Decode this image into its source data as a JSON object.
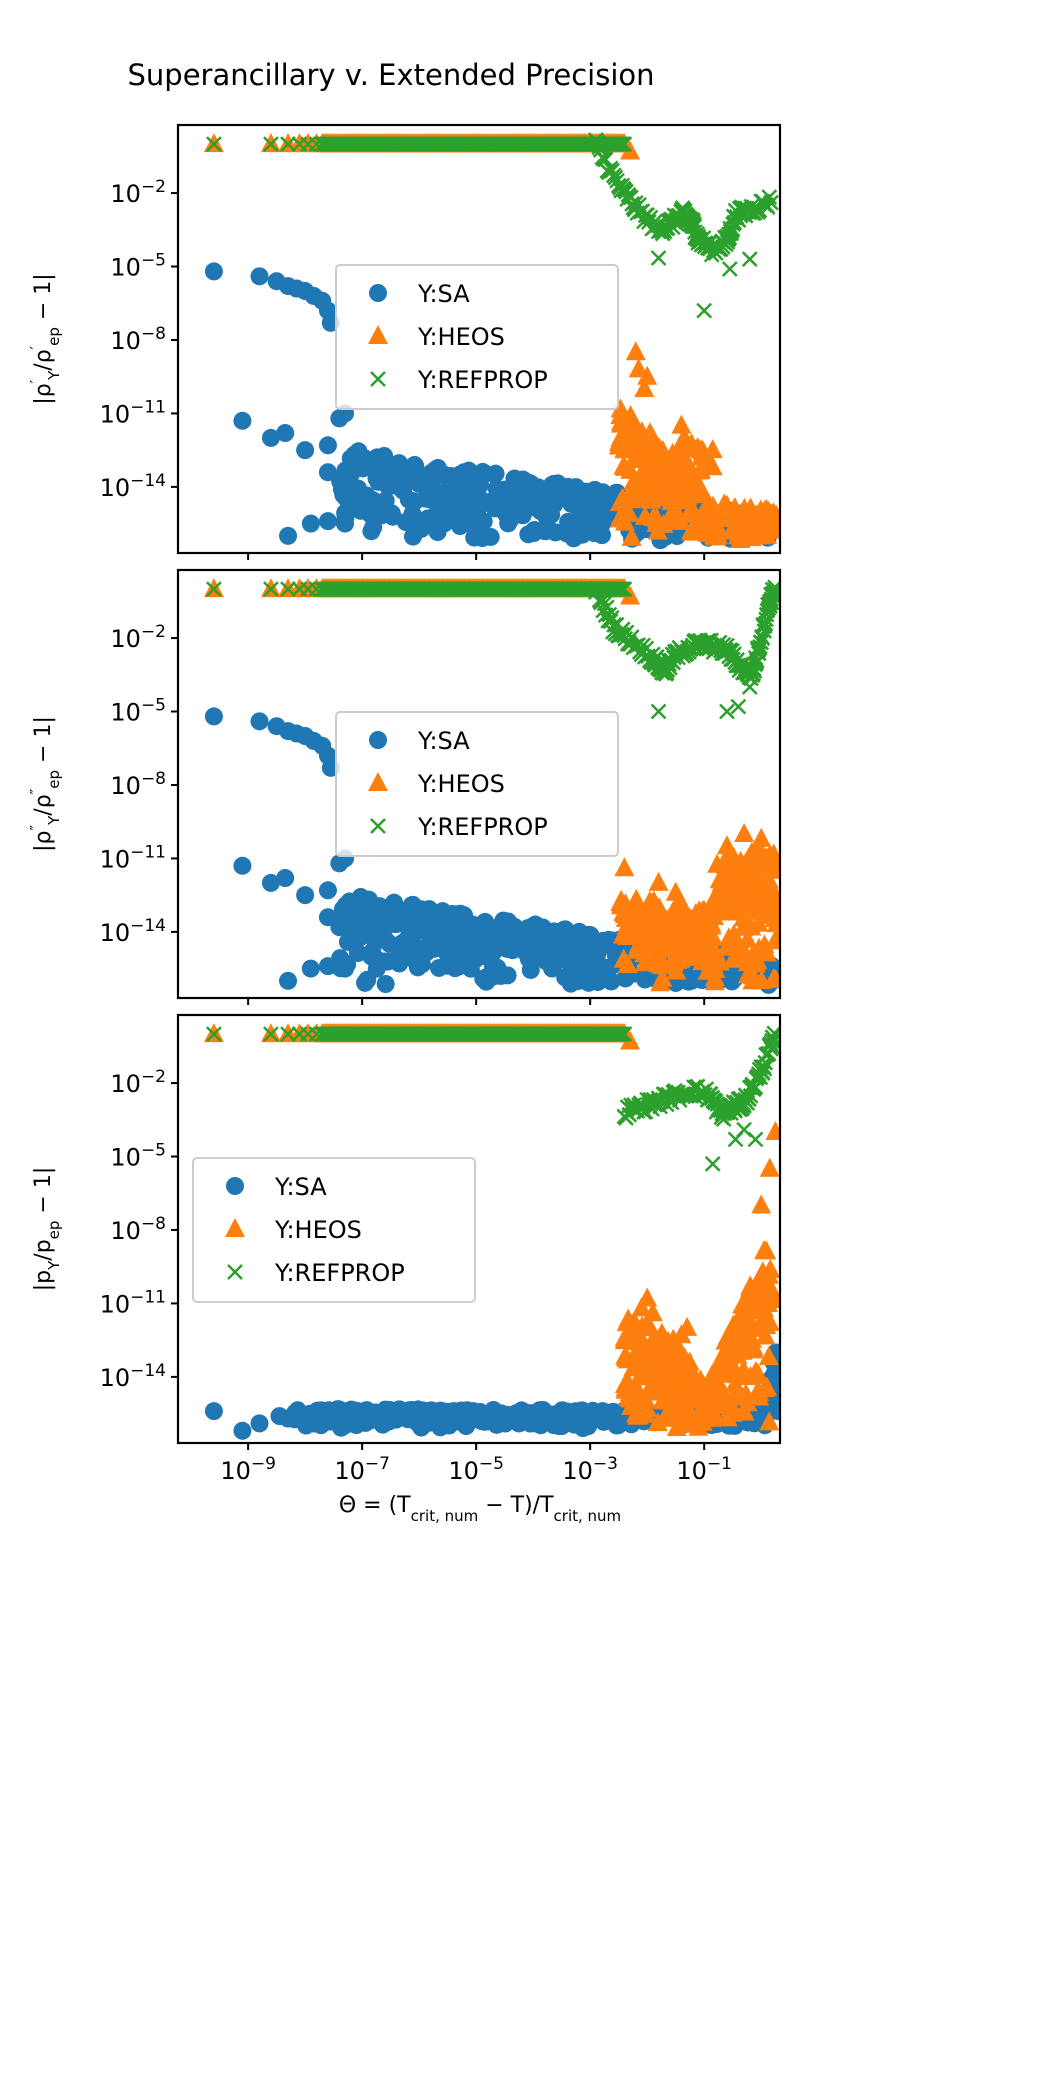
{
  "chart_data": {
    "type": "scatter",
    "title": "Superancillary v. Extended Precision",
    "xlabel_parts": [
      {
        "t": "Θ = (T"
      },
      {
        "t": "crit, num",
        "s": "sub"
      },
      {
        "t": " − T)/T"
      },
      {
        "t": "crit, num",
        "s": "sub"
      }
    ],
    "x_scale": "log",
    "x_log10_range": [
      -10.23,
      0.33
    ],
    "y_scale": "log",
    "y_log10_range": [
      -16.7,
      0.78
    ],
    "x_tick_exponents": [
      "−9",
      "−7",
      "−5",
      "−3",
      "−1"
    ],
    "x_tick_values_log10": [
      -9,
      -7,
      -5,
      -3,
      -1
    ],
    "y_tick_exponents": [
      "−14",
      "−11",
      "−8",
      "−5",
      "−2"
    ],
    "y_tick_values_log10": [
      -14,
      -11,
      -8,
      -5,
      -2
    ],
    "tick_base": "10",
    "colors": {
      "SA": "#1f77b4",
      "HEOS": "#ff7f0e",
      "REFPROP": "#2ca02c"
    },
    "legend_labels": [
      "Y:SA",
      "Y:HEOS",
      "Y:REFPROP"
    ],
    "panels": [
      {
        "ylabel_parts": [
          {
            "t": "|ρ"
          },
          {
            "t": "′",
            "s": "sup"
          },
          {
            "t": "Y",
            "s": "sub"
          },
          {
            "t": "/ρ"
          },
          {
            "t": "′",
            "s": "sup"
          },
          {
            "t": "ep",
            "s": "sub"
          },
          {
            "t": " − 1|"
          }
        ],
        "legend_placement": "center",
        "series": {
          "SA": {
            "points": [
              [
                -9.6,
                -5.2
              ],
              [
                -8.8,
                -5.4
              ],
              [
                -8.5,
                -5.6
              ],
              [
                -8.3,
                -5.8
              ],
              [
                -8.15,
                -5.9
              ],
              [
                -8.0,
                -6.0
              ],
              [
                -7.85,
                -6.2
              ],
              [
                -7.7,
                -6.4
              ],
              [
                -7.6,
                -6.8
              ],
              [
                -7.55,
                -7.3
              ],
              [
                -9.1,
                -11.3
              ],
              [
                -8.6,
                -12.0
              ],
              [
                -8.35,
                -11.8
              ],
              [
                -8.0,
                -12.5
              ],
              [
                -7.6,
                -12.3
              ],
              [
                -7.4,
                -11.2
              ],
              [
                -7.3,
                -11.0
              ],
              [
                -7.6,
                -13.4
              ],
              [
                -8.3,
                -16.0
              ],
              [
                -7.9,
                -15.5
              ],
              [
                -7.6,
                -15.4
              ],
              [
                -7.3,
                -15.5
              ]
            ],
            "bands": [
              {
                "x_from": -7.4,
                "x_to": 0.3,
                "y_top_from": -12.4,
                "y_top_to": -15.3,
                "y_bot": -16.2,
                "n": 420
              }
            ]
          },
          "HEOS": {
            "points": [
              [
                -9.6,
                0
              ],
              [
                -8.6,
                0
              ],
              [
                -8.3,
                0
              ],
              [
                -8.1,
                0
              ],
              [
                -7.95,
                0
              ],
              [
                -7.8,
                0
              ],
              [
                -2.3,
                -0.3
              ],
              [
                -2.2,
                -8.5
              ],
              [
                -2.15,
                -9.2
              ],
              [
                -2.05,
                -10.0
              ],
              [
                -2.0,
                -9.5
              ],
              [
                -2.3,
                -11.5
              ],
              [
                -2.4,
                -12.5
              ],
              [
                -1.95,
                -11.8
              ],
              [
                -1.85,
                -12.5
              ],
              [
                -1.4,
                -11.5
              ],
              [
                -1.35,
                -12.0
              ],
              [
                -1.3,
                -12.4
              ],
              [
                -0.85,
                -12.5
              ],
              [
                -0.85,
                -13.2
              ]
            ],
            "plateau": {
              "x_from": -7.7,
              "x_to": -2.4,
              "y": 0,
              "n": 220
            },
            "bands": [
              {
                "x_from": -2.5,
                "x_to": -1.5,
                "y_top_from": -10.5,
                "y_top_to": -13.0,
                "y_bot": -16.2,
                "n": 120
              },
              {
                "x_from": -1.6,
                "x_to": -1.0,
                "y_top_from": -12.5,
                "y_top_to": -12.0,
                "y_bot": -16.0,
                "n": 60
              },
              {
                "x_from": -1.0,
                "x_to": 0.3,
                "y_top_from": -14.6,
                "y_top_to": -15.0,
                "y_bot": -16.2,
                "n": 90
              }
            ]
          },
          "REFPROP": {
            "points": [
              [
                -9.6,
                0
              ],
              [
                -8.6,
                0
              ],
              [
                -8.3,
                0
              ],
              [
                -8.1,
                0
              ],
              [
                -7.95,
                0
              ],
              [
                -7.8,
                0
              ],
              [
                -1.8,
                -4.65
              ],
              [
                -1.0,
                -6.8
              ],
              [
                -0.55,
                -5.1
              ],
              [
                -0.2,
                -4.7
              ]
            ],
            "plateau": {
              "x_from": -7.7,
              "x_to": -2.4,
              "y": 0,
              "n": 220
            },
            "curve": [
              [
                -2.9,
                0
              ],
              [
                -2.5,
                -1.7
              ],
              [
                -2.2,
                -2.6
              ],
              [
                -1.8,
                -3.5
              ],
              [
                -1.55,
                -3.2
              ],
              [
                -1.35,
                -2.8
              ],
              [
                -1.2,
                -3.3
              ],
              [
                -1.1,
                -3.9
              ],
              [
                -0.85,
                -4.3
              ],
              [
                -0.6,
                -4.0
              ],
              [
                -0.45,
                -2.9
              ],
              [
                -0.2,
                -2.7
              ],
              [
                0.2,
                -2.3
              ]
            ]
          }
        }
      },
      {
        "ylabel_parts": [
          {
            "t": "|ρ"
          },
          {
            "t": "″",
            "s": "sup"
          },
          {
            "t": "Y",
            "s": "sub"
          },
          {
            "t": "/ρ"
          },
          {
            "t": "″",
            "s": "sup"
          },
          {
            "t": "ep",
            "s": "sub"
          },
          {
            "t": " − 1|"
          }
        ],
        "legend_placement": "center",
        "series": {
          "SA": {
            "points": [
              [
                -9.6,
                -5.2
              ],
              [
                -8.8,
                -5.4
              ],
              [
                -8.5,
                -5.6
              ],
              [
                -8.3,
                -5.8
              ],
              [
                -8.15,
                -5.9
              ],
              [
                -8.0,
                -6.0
              ],
              [
                -7.85,
                -6.2
              ],
              [
                -7.7,
                -6.4
              ],
              [
                -7.6,
                -6.8
              ],
              [
                -7.55,
                -7.3
              ],
              [
                -9.1,
                -11.3
              ],
              [
                -8.6,
                -12.0
              ],
              [
                -8.35,
                -11.8
              ],
              [
                -8.0,
                -12.5
              ],
              [
                -7.6,
                -12.3
              ],
              [
                -7.4,
                -11.2
              ],
              [
                -7.3,
                -11.0
              ],
              [
                -7.6,
                -13.4
              ],
              [
                -8.3,
                -16.0
              ],
              [
                -7.9,
                -15.5
              ],
              [
                -7.6,
                -15.4
              ],
              [
                -7.3,
                -15.5
              ]
            ],
            "bands": [
              {
                "x_from": -7.4,
                "x_to": 0.3,
                "y_top_from": -12.4,
                "y_top_to": -15.3,
                "y_bot": -16.2,
                "n": 420
              }
            ]
          },
          "HEOS": {
            "points": [
              [
                -9.6,
                0
              ],
              [
                -8.6,
                0
              ],
              [
                -8.3,
                0
              ],
              [
                -8.1,
                0
              ],
              [
                -7.95,
                0
              ],
              [
                -7.8,
                0
              ],
              [
                -2.3,
                -0.3
              ],
              [
                -2.4,
                -11.4
              ],
              [
                -1.8,
                -12.0
              ],
              [
                -1.5,
                -12.4
              ],
              [
                -0.6,
                -10.5
              ],
              [
                -0.3,
                -10.0
              ],
              [
                0.0,
                -10.2
              ]
            ],
            "plateau": {
              "x_from": -7.7,
              "x_to": -2.4,
              "y": 0,
              "n": 220
            },
            "bands": [
              {
                "x_from": -2.5,
                "x_to": -1.3,
                "y_top_from": -12.5,
                "y_top_to": -13.0,
                "y_bot": -16.2,
                "n": 120
              },
              {
                "x_from": -1.3,
                "x_to": -0.8,
                "y_top_from": -13.5,
                "y_top_to": -12.5,
                "y_bot": -16.2,
                "n": 60
              },
              {
                "x_from": -0.8,
                "x_to": 0.3,
                "y_top_from": -11.0,
                "y_top_to": -10.5,
                "y_bot": -16.2,
                "n": 140
              }
            ]
          },
          "REFPROP": {
            "points": [
              [
                -9.6,
                0
              ],
              [
                -8.6,
                0
              ],
              [
                -8.3,
                0
              ],
              [
                -8.1,
                0
              ],
              [
                -7.95,
                0
              ],
              [
                -7.8,
                0
              ],
              [
                -1.8,
                -5.0
              ],
              [
                -0.6,
                -5.0
              ],
              [
                -0.4,
                -4.8
              ],
              [
                -0.2,
                -4.0
              ]
            ],
            "plateau": {
              "x_from": -7.7,
              "x_to": -2.4,
              "y": 0,
              "n": 220
            },
            "curve": [
              [
                -2.9,
                0
              ],
              [
                -2.6,
                -1.5
              ],
              [
                -2.3,
                -2.1
              ],
              [
                -1.9,
                -2.8
              ],
              [
                -1.7,
                -3.4
              ],
              [
                -1.5,
                -2.7
              ],
              [
                -1.2,
                -2.3
              ],
              [
                -0.9,
                -2.3
              ],
              [
                -0.6,
                -2.5
              ],
              [
                -0.35,
                -3.2
              ],
              [
                -0.15,
                -3.5
              ],
              [
                0.0,
                -2.0
              ],
              [
                0.15,
                -0.5
              ],
              [
                0.25,
                0.0
              ]
            ]
          }
        }
      },
      {
        "ylabel_parts": [
          {
            "t": "|p"
          },
          {
            "t": "Y",
            "s": "sub"
          },
          {
            "t": "/p"
          },
          {
            "t": "ep",
            "s": "sub"
          },
          {
            "t": " − 1|"
          }
        ],
        "legend_placement": "center-left",
        "series": {
          "SA": {
            "points": [
              [
                -9.6,
                -15.4
              ],
              [
                -9.1,
                -16.2
              ],
              [
                -8.8,
                -15.9
              ],
              [
                -8.45,
                -15.6
              ],
              [
                -8.3,
                -15.7
              ]
            ],
            "bands": [
              {
                "x_from": -8.2,
                "x_to": 0.1,
                "y_top_from": -15.3,
                "y_top_to": -15.4,
                "y_bot": -16.1,
                "n": 380
              },
              {
                "x_from": 0.1,
                "x_to": 0.3,
                "y_top_from": -14.5,
                "y_top_to": -12.5,
                "y_bot": -16.0,
                "n": 25
              }
            ]
          },
          "HEOS": {
            "points": [
              [
                -9.6,
                0
              ],
              [
                -8.6,
                0
              ],
              [
                -8.3,
                0
              ],
              [
                -8.1,
                0
              ],
              [
                -7.95,
                0
              ],
              [
                -7.8,
                0
              ],
              [
                -2.3,
                -0.3
              ],
              [
                -2.1,
                -11.2
              ],
              [
                -2.0,
                -10.8
              ],
              [
                -1.9,
                -11.4
              ],
              [
                -1.4,
                -12.3
              ],
              [
                -1.3,
                -12.0
              ],
              [
                0.0,
                -7.0
              ],
              [
                0.15,
                -5.5
              ],
              [
                0.25,
                -4.0
              ]
            ],
            "plateau": {
              "x_from": -7.7,
              "x_to": -2.4,
              "y": 0,
              "n": 220
            },
            "bands": [
              {
                "x_from": -2.4,
                "x_to": -1.5,
                "y_top_from": -11.5,
                "y_top_to": -12.5,
                "y_bot": -16.2,
                "n": 120
              },
              {
                "x_from": -1.5,
                "x_to": -0.9,
                "y_top_from": -12.5,
                "y_top_to": -14.5,
                "y_bot": -16.2,
                "n": 60
              },
              {
                "x_from": -0.9,
                "x_to": 0.2,
                "y_top_from": -14.0,
                "y_top_to": -8.0,
                "y_bot": -16.2,
                "n": 130
              }
            ]
          },
          "REFPROP": {
            "points": [
              [
                -9.6,
                0
              ],
              [
                -8.6,
                0
              ],
              [
                -8.3,
                0
              ],
              [
                -8.1,
                0
              ],
              [
                -7.95,
                0
              ],
              [
                -7.8,
                0
              ],
              [
                -0.85,
                -5.3
              ],
              [
                -0.45,
                -4.3
              ],
              [
                -0.3,
                -3.9
              ],
              [
                -0.1,
                -4.3
              ]
            ],
            "plateau": {
              "x_from": -7.7,
              "x_to": -2.4,
              "y": 0,
              "n": 220
            },
            "curve": [
              [
                -2.4,
                -3.2
              ],
              [
                -2.0,
                -2.9
              ],
              [
                -1.6,
                -2.6
              ],
              [
                -1.2,
                -2.3
              ],
              [
                -0.9,
                -2.5
              ],
              [
                -0.7,
                -3.3
              ],
              [
                -0.5,
                -3.0
              ],
              [
                -0.3,
                -2.8
              ],
              [
                -0.1,
                -2.0
              ],
              [
                0.1,
                -1.0
              ],
              [
                0.25,
                0.0
              ]
            ]
          }
        }
      }
    ]
  }
}
